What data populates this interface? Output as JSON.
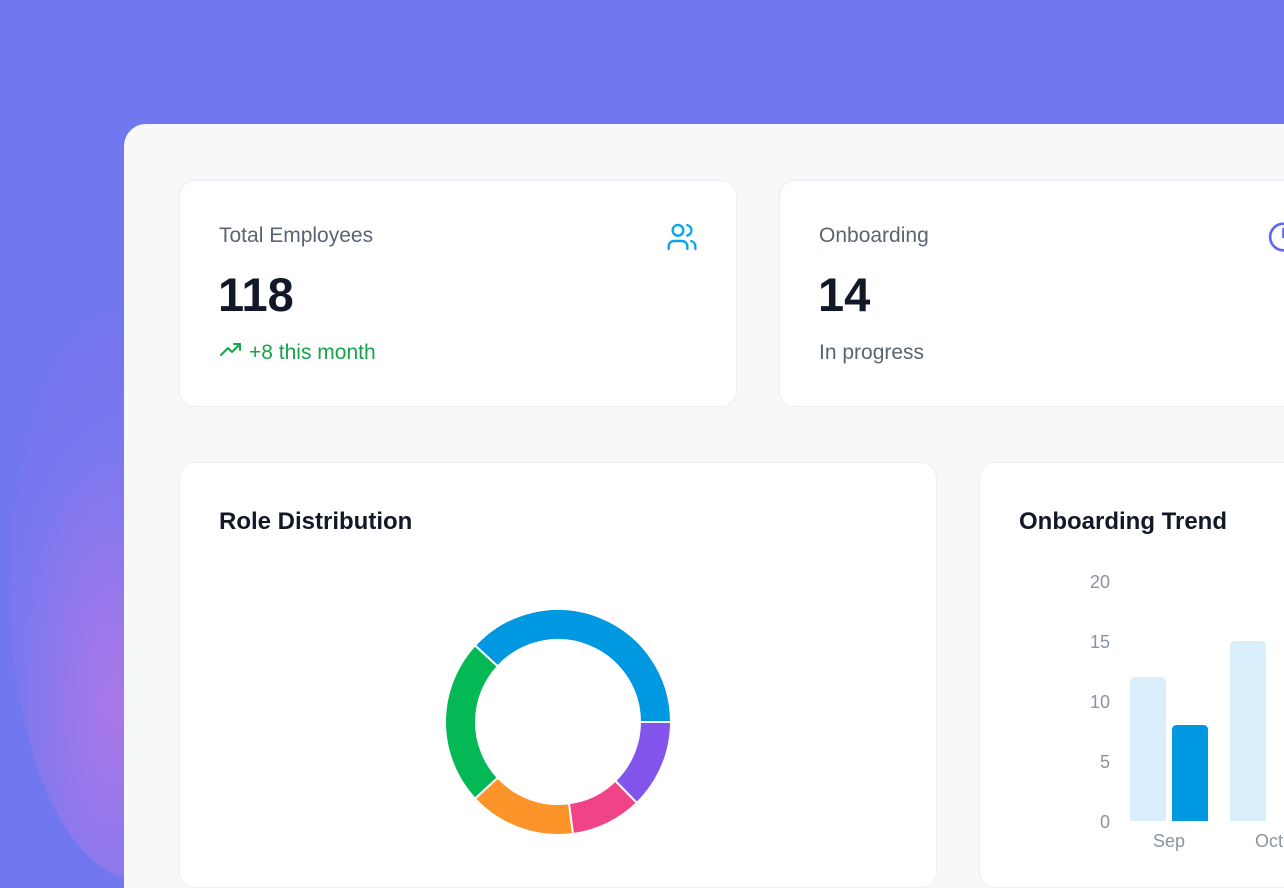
{
  "stats": [
    {
      "label": "Total Employees",
      "value": "118",
      "sub": "+8 this month",
      "icon": "users-icon",
      "color": "#0ea5e9",
      "trend": "up"
    },
    {
      "label": "Onboarding",
      "value": "14",
      "sub": "In progress",
      "icon": "clock-icon",
      "color": "#6366f1"
    }
  ],
  "chart_data": [
    {
      "type": "pie",
      "title": "Role Distribution",
      "donut": true,
      "values": [
        45,
        15,
        12,
        18,
        28
      ],
      "colors": [
        "#0098e0",
        "#8354eb",
        "#ef4488",
        "#fb952a",
        "#05b856"
      ]
    },
    {
      "type": "bar",
      "title": "Onboarding Trend",
      "categories": [
        "Sep",
        "Oct"
      ],
      "series": [
        {
          "values": [
            12,
            15
          ],
          "color": "#dbeefc"
        },
        {
          "values": [
            8,
            null
          ],
          "color": "#0098e0"
        }
      ],
      "yticks": [
        "0",
        "5",
        "10",
        "15",
        "20"
      ],
      "ylim": [
        0,
        20
      ]
    }
  ],
  "colors": {
    "background": "#7177ee",
    "panel": "#f7f8fa",
    "positive": "#16a34a"
  }
}
